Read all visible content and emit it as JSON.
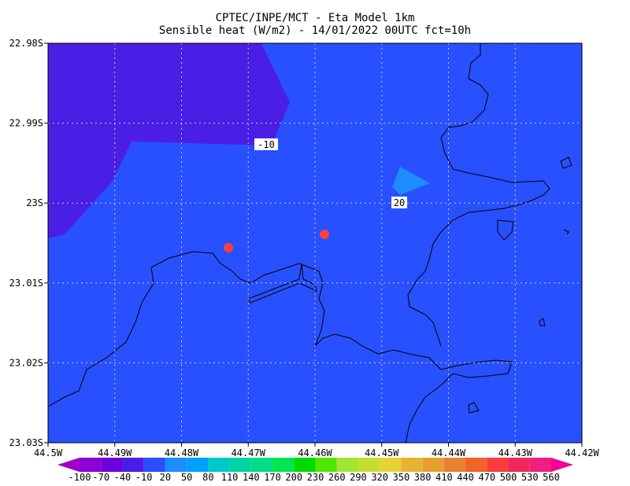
{
  "header": {
    "title_lines": [
      "CPTEC/INPE/MCT -  Eta Model 1km",
      "Sensible heat (W/m2) - 14/01/2022 00UTC fct=10h"
    ]
  },
  "map": {
    "lat_ticks": [
      "22.98S",
      "22.99S",
      "23S",
      "23.01S",
      "23.02S",
      "23.03S"
    ],
    "lon_ticks": [
      "44.5W",
      "44.49W",
      "44.48W",
      "44.47W",
      "44.46W",
      "44.45W",
      "44.44W",
      "44.43W",
      "44.42W"
    ],
    "contour_labels": [
      "-10",
      "20"
    ]
  },
  "colorbar": {
    "labels": [
      -100,
      -70,
      -40,
      -10,
      20,
      50,
      80,
      110,
      140,
      170,
      200,
      230,
      260,
      290,
      320,
      350,
      380,
      410,
      440,
      470,
      500,
      530,
      560
    ],
    "colors": [
      "#a000c8",
      "#8c00d7",
      "#6e00dc",
      "#4b1ee6",
      "#2850ff",
      "#1e8cff",
      "#00a0ff",
      "#00c8c8",
      "#00d2a0",
      "#00dc8c",
      "#00e650",
      "#00dc00",
      "#50e600",
      "#a0e632",
      "#c8dc32",
      "#e6d232",
      "#e6b432",
      "#e6a032",
      "#e68232",
      "#f06428",
      "#fa3c3c",
      "#f0285a",
      "#f01e82",
      "#f00096"
    ]
  }
}
